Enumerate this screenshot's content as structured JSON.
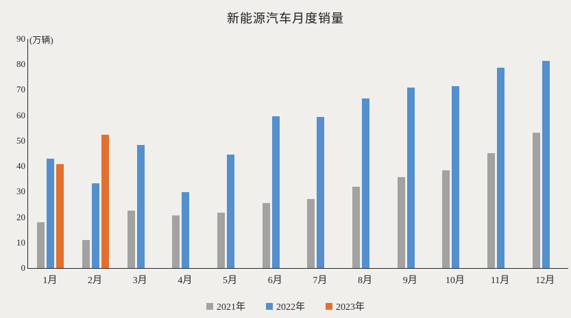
{
  "chart_data": {
    "type": "bar",
    "title": "新能源汽车月度销量",
    "unit_label": "(万辆)",
    "categories": [
      "1月",
      "2月",
      "3月",
      "4月",
      "5月",
      "6月",
      "7月",
      "8月",
      "9月",
      "10月",
      "11月",
      "12月"
    ],
    "series": [
      {
        "name": "2021年",
        "color": "#a2a2a2",
        "values": [
          17.9,
          11.0,
          22.6,
          20.6,
          21.7,
          25.6,
          27.1,
          32.1,
          35.7,
          38.3,
          45.0,
          53.1
        ]
      },
      {
        "name": "2022年",
        "color": "#5390cd",
        "values": [
          43.1,
          33.4,
          48.4,
          29.9,
          44.7,
          59.6,
          59.3,
          66.6,
          70.8,
          71.4,
          78.6,
          81.4
        ]
      },
      {
        "name": "2023年",
        "color": "#e2712f",
        "values": [
          40.8,
          52.5,
          null,
          null,
          null,
          null,
          null,
          null,
          null,
          null,
          null,
          null
        ]
      }
    ],
    "y_axis": {
      "min": 0,
      "max": 90,
      "step": 10,
      "ticks": [
        0,
        10,
        20,
        30,
        40,
        50,
        60,
        70,
        80,
        90
      ]
    },
    "xlabel": "",
    "ylabel": "(万辆)",
    "ylim": [
      0,
      90
    ],
    "grid": false,
    "legend_position": "bottom",
    "background_color": "#f0efec",
    "axis_color": "#262626"
  }
}
